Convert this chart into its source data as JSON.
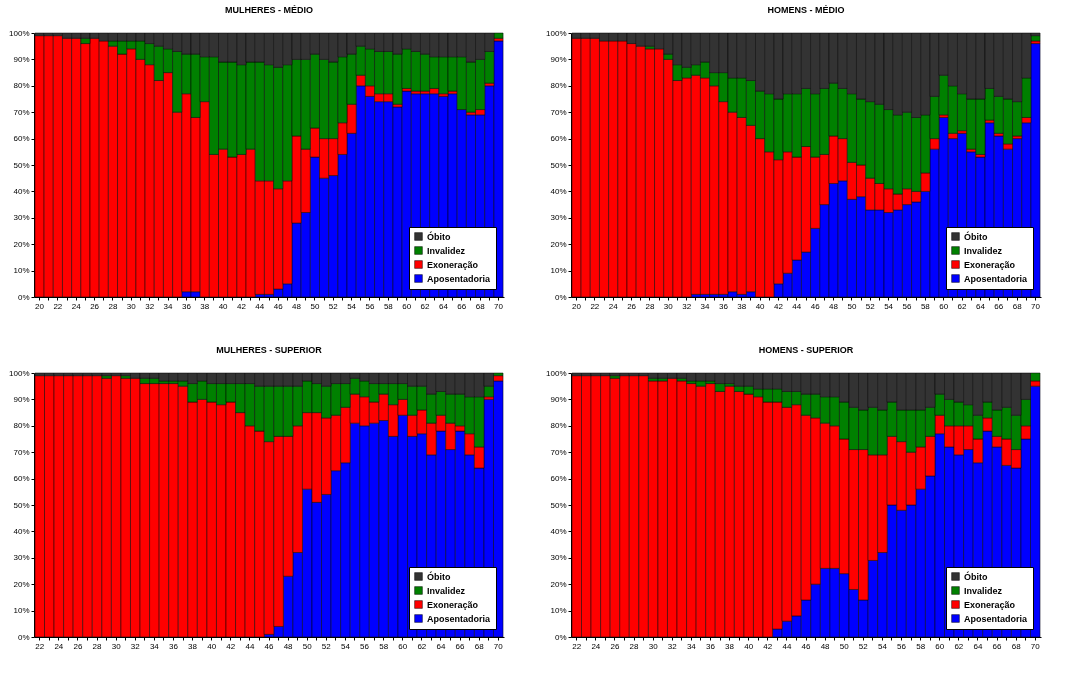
{
  "chart_data": [
    {
      "type": "bar",
      "title": "MULHERES - MÉDIO",
      "stacked": true,
      "legend": "bottom right",
      "ylim": [
        0,
        100
      ],
      "yticks": [
        {
          "value": 0,
          "label": "0%"
        },
        {
          "value": 10,
          "label": "10%"
        },
        {
          "value": 20,
          "label": "20%"
        },
        {
          "value": 30,
          "label": "30%"
        },
        {
          "value": 40,
          "label": "40%"
        },
        {
          "value": 50,
          "label": "50%"
        },
        {
          "value": 60,
          "label": "60%"
        },
        {
          "value": 70,
          "label": "70%"
        },
        {
          "value": 80,
          "label": "80%"
        },
        {
          "value": 90,
          "label": "90%"
        },
        {
          "value": 100,
          "label": "100%"
        }
      ],
      "categories": [
        "20",
        null,
        "22",
        null,
        "24",
        null,
        "26",
        null,
        "28",
        null,
        "30",
        null,
        "32",
        null,
        "34",
        null,
        "36",
        null,
        "38",
        null,
        "40",
        null,
        "42",
        null,
        "44",
        null,
        "46",
        null,
        "48",
        null,
        "50",
        null,
        "52",
        null,
        "54",
        null,
        "56",
        null,
        "58",
        null,
        "60",
        null,
        "62",
        null,
        "64",
        null,
        "66",
        null,
        "68",
        null,
        "70"
      ],
      "series": [
        {
          "name": "Aposentadoria",
          "color": "#0000ff",
          "values": [
            0,
            0,
            0,
            0,
            0,
            0,
            0,
            0,
            0,
            0,
            0,
            0,
            0,
            0,
            0,
            0,
            2,
            2,
            0,
            0,
            0,
            0,
            0,
            0,
            1,
            1,
            3,
            5,
            28,
            32,
            53,
            45,
            46,
            54,
            62,
            80,
            76,
            74,
            74,
            72,
            78,
            77,
            77,
            77,
            76,
            77,
            71,
            69,
            69,
            80,
            97
          ]
        },
        {
          "name": "Exoneração",
          "color": "#ff0000",
          "values": [
            99,
            99,
            99,
            98,
            98,
            96,
            98,
            97,
            95,
            92,
            94,
            90,
            88,
            82,
            85,
            70,
            75,
            66,
            74,
            54,
            56,
            53,
            54,
            56,
            43,
            43,
            38,
            39,
            33,
            24,
            11,
            15,
            14,
            12,
            11,
            4,
            4,
            3,
            3,
            1,
            1,
            1,
            1,
            2,
            1,
            1,
            0,
            1,
            2,
            1,
            1
          ]
        },
        {
          "name": "Invalidez",
          "color": "#008000",
          "values": [
            0,
            0,
            0,
            0,
            0,
            2,
            0,
            0,
            2,
            5,
            3,
            7,
            8,
            13,
            9,
            23,
            15,
            24,
            17,
            37,
            33,
            36,
            34,
            33,
            45,
            44,
            46,
            44,
            29,
            34,
            28,
            30,
            29,
            25,
            19,
            11,
            14,
            16,
            16,
            19,
            15,
            15,
            14,
            12,
            14,
            13,
            20,
            19,
            19,
            12,
            2
          ]
        },
        {
          "name": "Óbito",
          "color": "#333333",
          "values": [
            1,
            1,
            1,
            2,
            2,
            2,
            2,
            3,
            3,
            3,
            3,
            3,
            4,
            5,
            6,
            7,
            8,
            8,
            9,
            9,
            11,
            11,
            12,
            11,
            11,
            12,
            13,
            12,
            10,
            10,
            8,
            10,
            11,
            9,
            8,
            5,
            6,
            7,
            7,
            8,
            6,
            7,
            8,
            9,
            9,
            9,
            9,
            11,
            10,
            7,
            0
          ]
        }
      ]
    },
    {
      "type": "bar",
      "title": "HOMENS - MÉDIO",
      "stacked": true,
      "legend": "bottom right",
      "ylim": [
        0,
        100
      ],
      "yticks": [
        {
          "value": 0,
          "label": "0%"
        },
        {
          "value": 10,
          "label": "10%"
        },
        {
          "value": 20,
          "label": "20%"
        },
        {
          "value": 30,
          "label": "30%"
        },
        {
          "value": 40,
          "label": "40%"
        },
        {
          "value": 50,
          "label": "50%"
        },
        {
          "value": 60,
          "label": "60%"
        },
        {
          "value": 70,
          "label": "70%"
        },
        {
          "value": 80,
          "label": "80%"
        },
        {
          "value": 90,
          "label": "90%"
        },
        {
          "value": 100,
          "label": "100%"
        }
      ],
      "categories": [
        "20",
        null,
        "22",
        null,
        "24",
        null,
        "26",
        null,
        "28",
        null,
        "30",
        null,
        "32",
        null,
        "34",
        null,
        "36",
        null,
        "38",
        null,
        "40",
        null,
        "42",
        null,
        "44",
        null,
        "46",
        null,
        "48",
        null,
        "50",
        null,
        "52",
        null,
        "54",
        null,
        "56",
        null,
        "58",
        null,
        "60",
        null,
        "62",
        null,
        "64",
        null,
        "66",
        null,
        "68",
        null,
        "70"
      ],
      "series": [
        {
          "name": "Aposentadoria",
          "color": "#0000ff",
          "values": [
            0,
            0,
            0,
            0,
            0,
            0,
            0,
            0,
            0,
            0,
            0,
            0,
            0,
            1,
            1,
            1,
            1,
            2,
            1,
            2,
            0,
            0,
            5,
            9,
            14,
            17,
            26,
            35,
            43,
            44,
            37,
            38,
            33,
            33,
            32,
            33,
            35,
            36,
            40,
            56,
            68,
            60,
            62,
            55,
            53,
            66,
            61,
            56,
            60,
            66,
            96
          ]
        },
        {
          "name": "Exoneração",
          "color": "#ff0000",
          "values": [
            98,
            98,
            98,
            97,
            97,
            97,
            96,
            95,
            94,
            94,
            90,
            82,
            83,
            83,
            82,
            79,
            73,
            68,
            67,
            63,
            60,
            55,
            47,
            46,
            39,
            40,
            27,
            19,
            18,
            16,
            14,
            12,
            12,
            10,
            9,
            6,
            6,
            4,
            7,
            4,
            1,
            2,
            1,
            1,
            1,
            1,
            1,
            2,
            1,
            2,
            1
          ]
        },
        {
          "name": "Invalidez",
          "color": "#008000",
          "values": [
            0,
            0,
            0,
            0,
            0,
            0,
            0,
            0,
            1,
            0,
            2,
            6,
            4,
            4,
            6,
            5,
            11,
            13,
            15,
            17,
            18,
            22,
            23,
            22,
            24,
            22,
            24,
            25,
            20,
            19,
            26,
            25,
            29,
            30,
            30,
            30,
            29,
            28,
            22,
            16,
            15,
            18,
            14,
            19,
            21,
            12,
            14,
            17,
            13,
            15,
            2
          ]
        },
        {
          "name": "Óbito",
          "color": "#333333",
          "values": [
            2,
            2,
            2,
            3,
            3,
            3,
            4,
            5,
            5,
            6,
            8,
            12,
            13,
            12,
            11,
            15,
            15,
            17,
            17,
            18,
            22,
            23,
            25,
            23,
            23,
            21,
            23,
            21,
            19,
            21,
            23,
            25,
            26,
            27,
            29,
            31,
            30,
            32,
            31,
            24,
            16,
            20,
            23,
            25,
            25,
            21,
            24,
            25,
            26,
            17,
            1
          ]
        }
      ]
    },
    {
      "type": "bar",
      "title": "MULHERES - SUPERIOR",
      "stacked": true,
      "legend": "bottom right",
      "ylim": [
        0,
        100
      ],
      "yticks": [
        {
          "value": 0,
          "label": "0%"
        },
        {
          "value": 10,
          "label": "10%"
        },
        {
          "value": 20,
          "label": "20%"
        },
        {
          "value": 30,
          "label": "30%"
        },
        {
          "value": 40,
          "label": "40%"
        },
        {
          "value": 50,
          "label": "50%"
        },
        {
          "value": 60,
          "label": "60%"
        },
        {
          "value": 70,
          "label": "70%"
        },
        {
          "value": 80,
          "label": "80%"
        },
        {
          "value": 90,
          "label": "90%"
        },
        {
          "value": 100,
          "label": "100%"
        }
      ],
      "categories": [
        "22",
        null,
        "24",
        null,
        "26",
        null,
        "28",
        null,
        "30",
        null,
        "32",
        null,
        "34",
        null,
        "36",
        null,
        "38",
        null,
        "40",
        null,
        "42",
        null,
        "44",
        null,
        "46",
        null,
        "48",
        null,
        "50",
        null,
        "52",
        null,
        "54",
        null,
        "56",
        null,
        "58",
        null,
        "60",
        null,
        "62",
        null,
        "64",
        null,
        "66",
        null,
        "68",
        null,
        "70"
      ],
      "series": [
        {
          "name": "Aposentadoria",
          "color": "#0000ff",
          "values": [
            0,
            0,
            0,
            0,
            0,
            0,
            0,
            0,
            0,
            0,
            0,
            0,
            0,
            0,
            0,
            0,
            0,
            0,
            0,
            0,
            0,
            0,
            0,
            0,
            1,
            4,
            23,
            32,
            56,
            51,
            54,
            63,
            66,
            81,
            80,
            81,
            82,
            76,
            84,
            76,
            77,
            69,
            78,
            71,
            78,
            69,
            64,
            90,
            97
          ]
        },
        {
          "name": "Exoneração",
          "color": "#ff0000",
          "values": [
            99,
            99,
            99,
            99,
            99,
            99,
            99,
            98,
            99,
            98,
            98,
            96,
            96,
            96,
            96,
            95,
            89,
            90,
            89,
            88,
            89,
            85,
            80,
            78,
            73,
            72,
            53,
            48,
            29,
            34,
            29,
            21,
            21,
            11,
            11,
            8,
            10,
            12,
            6,
            8,
            9,
            12,
            6,
            10,
            2,
            8,
            8,
            1,
            2
          ]
        },
        {
          "name": "Invalidez",
          "color": "#008000",
          "values": [
            0,
            0,
            0,
            0,
            0,
            0,
            0,
            1,
            0,
            1,
            0,
            2,
            2,
            1,
            1,
            2,
            7,
            7,
            7,
            8,
            7,
            11,
            16,
            17,
            21,
            19,
            19,
            15,
            12,
            11,
            12,
            12,
            9,
            6,
            6,
            7,
            4,
            8,
            6,
            11,
            9,
            11,
            9,
            11,
            12,
            14,
            19,
            4,
            1
          ]
        },
        {
          "name": "Óbito",
          "color": "#333333",
          "values": [
            1,
            1,
            1,
            1,
            1,
            1,
            1,
            1,
            1,
            1,
            2,
            2,
            2,
            3,
            3,
            3,
            4,
            3,
            4,
            4,
            4,
            4,
            4,
            5,
            5,
            5,
            5,
            5,
            3,
            4,
            5,
            4,
            4,
            2,
            3,
            4,
            4,
            4,
            4,
            5,
            5,
            8,
            7,
            8,
            8,
            9,
            9,
            5,
            0
          ]
        }
      ]
    },
    {
      "type": "bar",
      "title": "HOMENS - SUPERIOR",
      "stacked": true,
      "legend": "bottom right",
      "ylim": [
        0,
        100
      ],
      "yticks": [
        {
          "value": 0,
          "label": "0%"
        },
        {
          "value": 10,
          "label": "10%"
        },
        {
          "value": 20,
          "label": "20%"
        },
        {
          "value": 30,
          "label": "30%"
        },
        {
          "value": 40,
          "label": "40%"
        },
        {
          "value": 50,
          "label": "50%"
        },
        {
          "value": 60,
          "label": "60%"
        },
        {
          "value": 70,
          "label": "70%"
        },
        {
          "value": 80,
          "label": "80%"
        },
        {
          "value": 90,
          "label": "90%"
        },
        {
          "value": 100,
          "label": "100%"
        }
      ],
      "categories": [
        "22",
        null,
        "24",
        null,
        "26",
        null,
        "28",
        null,
        "30",
        null,
        "32",
        null,
        "34",
        null,
        "36",
        null,
        "38",
        null,
        "40",
        null,
        "42",
        null,
        "44",
        null,
        "46",
        null,
        "48",
        null,
        "50",
        null,
        "52",
        null,
        "54",
        null,
        "56",
        null,
        "58",
        null,
        "60",
        null,
        "62",
        null,
        "64",
        null,
        "66",
        null,
        "68",
        null,
        "70"
      ],
      "series": [
        {
          "name": "Aposentadoria",
          "color": "#0000ff",
          "values": [
            0,
            0,
            0,
            0,
            0,
            0,
            0,
            0,
            0,
            0,
            0,
            0,
            0,
            0,
            0,
            0,
            0,
            0,
            0,
            0,
            0,
            3,
            6,
            8,
            14,
            20,
            26,
            26,
            24,
            18,
            14,
            29,
            32,
            50,
            48,
            50,
            56,
            61,
            77,
            72,
            69,
            71,
            66,
            78,
            72,
            65,
            64,
            75,
            95
          ]
        },
        {
          "name": "Exoneração",
          "color": "#ff0000",
          "values": [
            99,
            99,
            99,
            99,
            98,
            99,
            99,
            99,
            97,
            97,
            98,
            97,
            96,
            95,
            96,
            93,
            95,
            93,
            92,
            91,
            89,
            86,
            81,
            80,
            70,
            63,
            55,
            54,
            51,
            53,
            57,
            40,
            37,
            26,
            26,
            20,
            16,
            15,
            7,
            8,
            11,
            9,
            9,
            5,
            4,
            10,
            7,
            5,
            2
          ]
        },
        {
          "name": "Invalidez",
          "color": "#008000",
          "values": [
            0,
            0,
            0,
            0,
            1,
            0,
            0,
            0,
            1,
            1,
            0,
            1,
            1,
            2,
            1,
            3,
            1,
            2,
            3,
            3,
            5,
            5,
            6,
            5,
            8,
            9,
            10,
            11,
            14,
            16,
            15,
            18,
            17,
            13,
            12,
            16,
            14,
            11,
            8,
            10,
            9,
            8,
            9,
            6,
            10,
            12,
            13,
            10,
            3
          ]
        },
        {
          "name": "Óbito",
          "color": "#333333",
          "values": [
            1,
            1,
            1,
            1,
            1,
            1,
            1,
            1,
            2,
            2,
            2,
            2,
            3,
            3,
            3,
            4,
            4,
            5,
            5,
            6,
            6,
            6,
            7,
            7,
            8,
            8,
            9,
            9,
            11,
            13,
            14,
            13,
            14,
            11,
            14,
            14,
            14,
            13,
            8,
            10,
            11,
            12,
            16,
            11,
            14,
            13,
            16,
            10,
            0
          ]
        }
      ]
    }
  ]
}
